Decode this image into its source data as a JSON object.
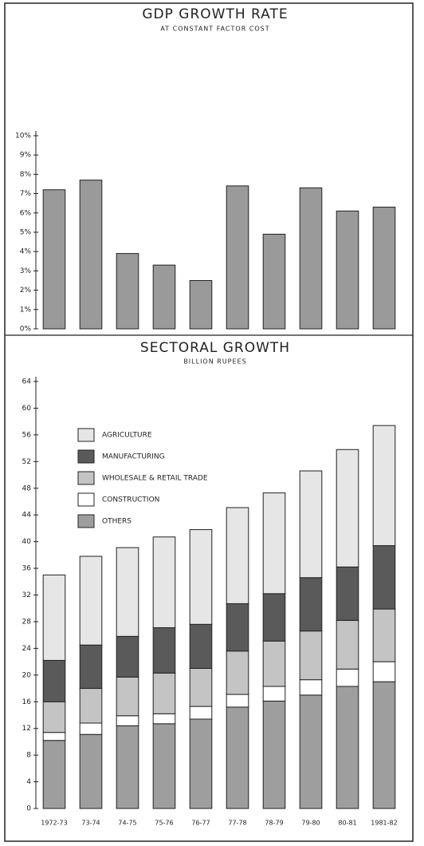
{
  "chart_data": [
    {
      "type": "bar",
      "title": "GDP GROWTH RATE",
      "subtitle": "AT CONSTANT FACTOR COST",
      "values": [
        7.2,
        7.7,
        3.9,
        3.3,
        2.5,
        7.4,
        4.9,
        7.3,
        6.1,
        6.3
      ],
      "color": "#9a9a9a",
      "ylim": [
        0,
        10
      ],
      "yticks": [
        {
          "value": 0,
          "label": "0%"
        },
        {
          "value": 1,
          "label": "1%"
        },
        {
          "value": 2,
          "label": "2%"
        },
        {
          "value": 3,
          "label": "3%"
        },
        {
          "value": 4,
          "label": "4%"
        },
        {
          "value": 5,
          "label": "5%"
        },
        {
          "value": 6,
          "label": "6%"
        },
        {
          "value": 7,
          "label": "7%"
        },
        {
          "value": 8,
          "label": "8%"
        },
        {
          "value": 9,
          "label": "9%"
        },
        {
          "value": 10,
          "label": "10%"
        }
      ]
    },
    {
      "type": "stacked_bar",
      "title": "SECTORAL GROWTH",
      "subtitle": "BILLION RUPEES",
      "categories": [
        "1972-73",
        "73-74",
        "74-75",
        "75-76",
        "76-77",
        "77-78",
        "78-79",
        "79-80",
        "80-81",
        "1981-82"
      ],
      "series": [
        {
          "name": "AGRICULTURE",
          "color": "#e6e6e6",
          "values": [
            12.8,
            13.3,
            13.3,
            13.6,
            14.2,
            14.4,
            15.1,
            16.0,
            17.6,
            18.0
          ]
        },
        {
          "name": "MANUFACTURING",
          "color": "#5a5a5a",
          "values": [
            6.2,
            6.5,
            6.1,
            6.8,
            6.6,
            7.1,
            7.1,
            8.0,
            8.0,
            9.5
          ]
        },
        {
          "name": "WHOLESALE & RETAIL TRADE",
          "color": "#c4c4c4",
          "values": [
            4.6,
            5.2,
            5.8,
            6.1,
            5.7,
            6.5,
            6.8,
            7.3,
            7.3,
            7.9
          ]
        },
        {
          "name": "CONSTRUCTION",
          "color": "#ffffff",
          "values": [
            1.2,
            1.7,
            1.5,
            1.5,
            1.9,
            1.9,
            2.2,
            2.3,
            2.6,
            3.0
          ]
        },
        {
          "name": "OTHERS",
          "color": "#9e9e9e",
          "values": [
            10.2,
            11.1,
            12.4,
            12.7,
            13.4,
            15.2,
            16.1,
            17.0,
            18.3,
            19.0
          ]
        }
      ],
      "ylim": [
        0,
        64
      ],
      "yticks": [
        0,
        4,
        8,
        12,
        16,
        20,
        24,
        28,
        32,
        36,
        40,
        44,
        48,
        52,
        56,
        60,
        64
      ]
    }
  ]
}
